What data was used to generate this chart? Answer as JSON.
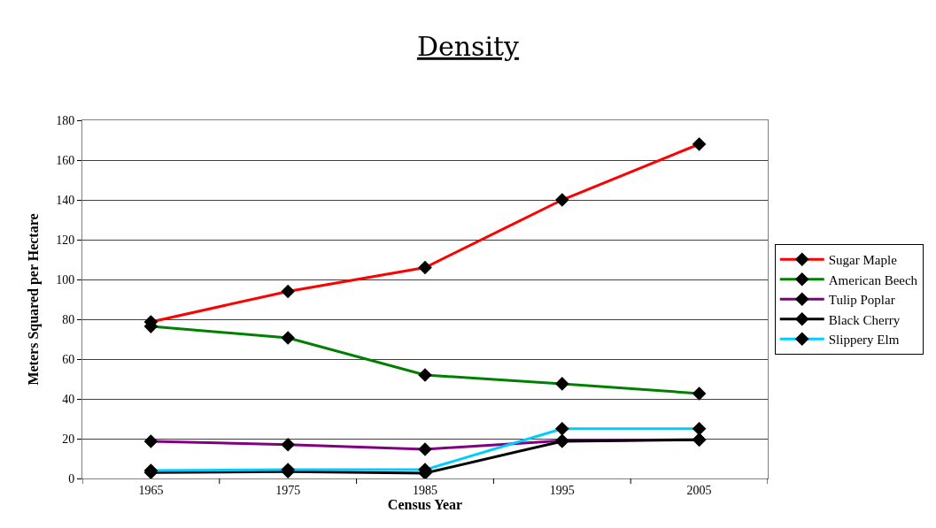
{
  "chart_data": {
    "type": "line",
    "title": "Density",
    "xlabel": "Census Year",
    "ylabel": "Meters Squared per Hectare",
    "categories": [
      "1965",
      "1975",
      "1985",
      "1995",
      "2005"
    ],
    "series": [
      {
        "name": "Sugar Maple",
        "color": "#ff0000",
        "values": [
          78.7,
          94,
          106,
          140,
          168
        ]
      },
      {
        "name": "American Beech",
        "color": "#008000",
        "values": [
          76.4,
          70.7,
          52,
          47.6,
          42.7
        ]
      },
      {
        "name": "Tulip Poplar",
        "color": "#800080",
        "values": [
          18.7,
          17,
          14.7,
          19,
          19.5
        ]
      },
      {
        "name": "Black Cherry",
        "color": "#000000",
        "values": [
          3,
          3.5,
          2.7,
          18.7,
          19.5
        ]
      },
      {
        "name": "Slippery Elm",
        "color": "#00ccff",
        "values": [
          4,
          4.4,
          4.4,
          25,
          25
        ]
      }
    ],
    "ylim": [
      0,
      180
    ],
    "yticks": [
      0,
      20,
      40,
      60,
      80,
      100,
      120,
      140,
      160,
      180
    ],
    "grid": "y",
    "legend": "right",
    "marker": "diamond",
    "line_style": "solid"
  }
}
